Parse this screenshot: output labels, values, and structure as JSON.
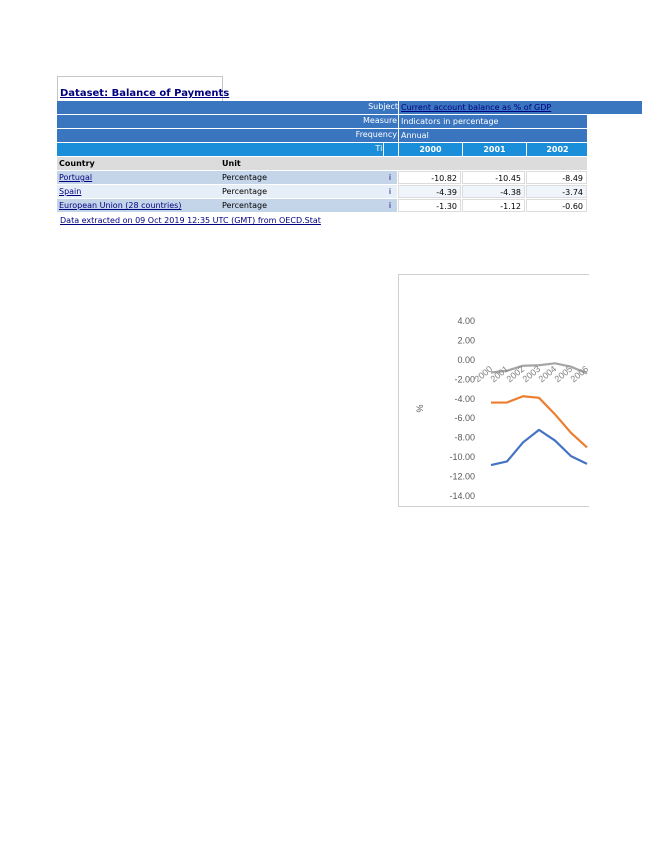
{
  "dataset_title": "Dataset: Balance of Payments",
  "dimensions": [
    {
      "label": "Subject",
      "value": "Current account balance as % of GDP",
      "is_link": true
    },
    {
      "label": "Measure",
      "value": "Indicators in percentage",
      "is_link": false
    },
    {
      "label": "Frequency",
      "value": "Annual",
      "is_link": false
    }
  ],
  "time_label": "Time",
  "years": [
    "2000",
    "2001",
    "2002"
  ],
  "headers": {
    "country": "Country",
    "unit": "Unit"
  },
  "rows": [
    {
      "country": "Portugal",
      "unit": "Percentage",
      "flag": "i",
      "values": [
        "-10.82",
        "-10.45",
        "-8.49"
      ]
    },
    {
      "country": "Spain",
      "unit": "Percentage",
      "flag": "i",
      "values": [
        "-4.39",
        "-4.38",
        "-3.74"
      ]
    },
    {
      "country": "European Union (28 countries)",
      "unit": "Percentage",
      "flag": "i",
      "values": [
        "-1.30",
        "-1.12",
        "-0.60"
      ]
    }
  ],
  "footer": "Data extracted on 09 Oct 2019 12:35 UTC (GMT) from OECD.Stat",
  "colors": {
    "header_blue": "#3a75bf",
    "time_blue": "#1a8ed9",
    "portugal": "#4472c4",
    "spain": "#ed7d31",
    "eu": "#a5a5a5"
  },
  "chart_data": {
    "type": "line",
    "ylabel": "%",
    "ylim": [
      -14,
      4
    ],
    "yticks": [
      "4.00",
      "2.00",
      "0.00",
      "-2.00",
      "-4.00",
      "-6.00",
      "-8.00",
      "-10.00",
      "-12.00",
      "-14.00"
    ],
    "x": [
      "2000",
      "2001",
      "2002",
      "2003",
      "2004",
      "2005",
      "2006"
    ],
    "series": [
      {
        "name": "Portugal",
        "values": [
          -10.82,
          -10.45,
          -8.49,
          -7.2,
          -8.3,
          -9.9,
          -10.7
        ]
      },
      {
        "name": "Spain",
        "values": [
          -4.39,
          -4.38,
          -3.74,
          -3.9,
          -5.6,
          -7.5,
          -9.0
        ]
      },
      {
        "name": "European Union (28 countries)",
        "values": [
          -1.3,
          -1.12,
          -0.6,
          -0.55,
          -0.35,
          -0.7,
          -1.4
        ]
      }
    ]
  }
}
